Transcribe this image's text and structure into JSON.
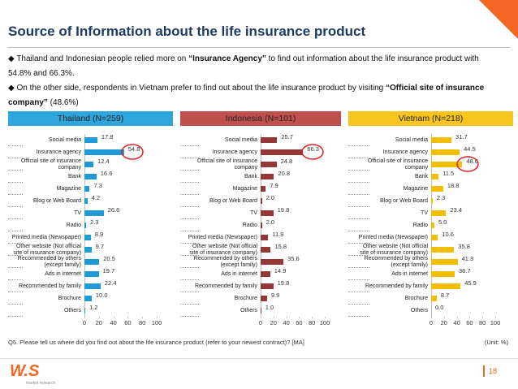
{
  "slide": {
    "title": "Source of Information about the life insurance product",
    "bullets": [
      {
        "before": "Thailand and Indonesian people relied more on ",
        "bold": "“Insurance Agency”",
        "after": " to find out information about the life insurance product with 54.8% and 66.3%."
      },
      {
        "before": "On the other side, respondents in Vietnam prefer to find out about the life insurance product by visiting ",
        "bold": "“Official site of insurance company”",
        "after": " (48.6%)"
      }
    ],
    "note": "Q5. Please tell us where did you find out about the life insurance product (refer to your newest contract)? [MA]",
    "unit": "(Unit: %)",
    "logo": "W.S",
    "logo_sub": "market research",
    "page": "18"
  },
  "chart_data": [
    {
      "type": "hbar",
      "title": "Thailand (N=259)",
      "header_color": "#2ea6dc",
      "color": "#1e9ad6",
      "categories": [
        "Social media",
        "Insurance agency",
        "Official site of insurance company",
        "Bank",
        "Magazine",
        "Blog or  Web Board",
        "TV",
        "Radio",
        "Printed media (Newspaper)",
        "Other website (Not official site of insurance company)",
        "Recommended by others (except family)",
        "Ads in internet",
        "Recommended by family",
        "Brochure",
        "Others"
      ],
      "values": [
        17.8,
        54.8,
        12.4,
        16.6,
        7.3,
        4.2,
        26.6,
        2.3,
        8.9,
        9.7,
        20.5,
        19.7,
        22.4,
        10.0,
        1.2
      ],
      "value_labels": [
        "17.8",
        "54.8",
        "12.4",
        "16.6",
        "7.3",
        "4.2",
        "26.6",
        "2.3",
        "8.9",
        "9.7",
        "20.5",
        "19.7",
        "22.4",
        "10.0",
        "1.2"
      ],
      "xlim": [
        0,
        100
      ],
      "xticks": [
        0,
        20,
        40,
        60,
        80,
        100
      ]
    },
    {
      "type": "hbar",
      "title": "Indonesia (N=101)",
      "header_color": "#c0504d",
      "color": "#953735",
      "categories": [
        "Social media",
        "Insurance agency",
        "Official site of insurance company",
        "Bank",
        "Magazine",
        "Blog or  Web Board",
        "TV",
        "Radio",
        "Printed media (Newspaper)",
        "Other website (Not official site of insurance company)",
        "Recommended by others (except family)",
        "Ads in internet",
        "Recommended by family",
        "Brochure",
        "Others"
      ],
      "values": [
        25.7,
        66.3,
        24.8,
        20.8,
        7.9,
        2.0,
        19.8,
        2.0,
        11.9,
        15.8,
        35.6,
        14.9,
        19.8,
        9.9,
        1.0
      ],
      "value_labels": [
        "25.7",
        "66.3",
        "24.8",
        "20.8",
        "7.9",
        "2.0",
        "19.8",
        "2.0",
        "11.9",
        "15.8",
        "35.6",
        "14.9",
        "19.8",
        "9.9",
        "1.0"
      ],
      "xlim": [
        0,
        100
      ],
      "xticks": [
        0,
        20,
        40,
        60,
        80,
        100
      ]
    },
    {
      "type": "hbar",
      "title": "Vietnam (N=218)",
      "header_color": "#f7c51e",
      "color": "#f2bf00",
      "categories": [
        "Social media",
        "Insurance agency",
        "Official site of insurance company",
        "Bank",
        "Magazine",
        "Blog or  Web Board",
        "TV",
        "Radio",
        "Printed media (Newspaper)",
        "Other website (Not official site of insurance company)",
        "Recommended by others (except family)",
        "Ads in internet",
        "Recommended by family",
        "Brochure",
        "Others"
      ],
      "values": [
        31.7,
        44.5,
        48.6,
        11.5,
        18.8,
        2.3,
        23.4,
        5.0,
        10.6,
        35.8,
        41.3,
        36.7,
        45.9,
        8.7,
        0.0
      ],
      "value_labels": [
        "31.7",
        "44.5",
        "48.6",
        "11.5",
        "18.8",
        "2.3",
        "23.4",
        "5.0",
        "10.6",
        "35.8",
        "41.3",
        "36.7",
        "45.9",
        "8.7",
        "0.0"
      ],
      "xlim": [
        0,
        100
      ],
      "xticks": [
        0,
        20,
        40,
        60,
        80,
        100
      ]
    }
  ]
}
